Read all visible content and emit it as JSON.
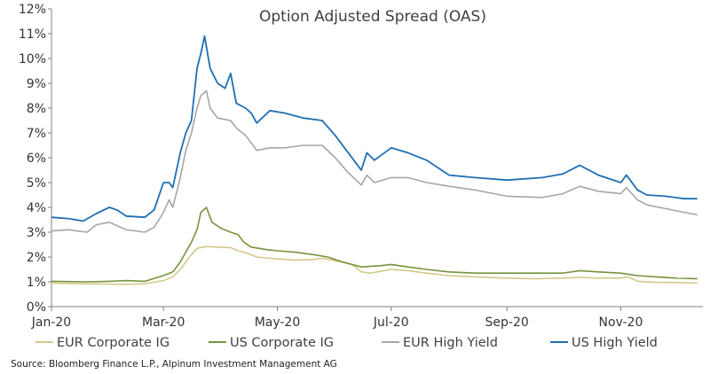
{
  "chart_data": {
    "type": "line",
    "title": "Option Adjusted Spread (OAS)",
    "xlabel": "",
    "ylabel": "",
    "x_ticks": [
      "Jan-20",
      "Mar-20",
      "May-20",
      "Jul-20",
      "Sep-20",
      "Nov-20"
    ],
    "y_ticks": [
      "0%",
      "1%",
      "2%",
      "3%",
      "4%",
      "5%",
      "6%",
      "7%",
      "8%",
      "9%",
      "10%",
      "11%",
      "12%"
    ],
    "ylim": [
      0,
      12
    ],
    "xlim": [
      "2020-01-01",
      "2020-12-15"
    ],
    "grid": false,
    "legend_position": "bottom",
    "series": [
      {
        "name": "EUR Corporate IG",
        "color": "#d6c98a",
        "points": [
          [
            "2020-01-01",
            0.95
          ],
          [
            "2020-01-20",
            0.92
          ],
          [
            "2020-02-10",
            0.9
          ],
          [
            "2020-02-20",
            0.92
          ],
          [
            "2020-03-01",
            1.05
          ],
          [
            "2020-03-06",
            1.2
          ],
          [
            "2020-03-10",
            1.5
          ],
          [
            "2020-03-13",
            1.8
          ],
          [
            "2020-03-16",
            2.1
          ],
          [
            "2020-03-19",
            2.35
          ],
          [
            "2020-03-24",
            2.42
          ],
          [
            "2020-03-30",
            2.4
          ],
          [
            "2020-04-06",
            2.38
          ],
          [
            "2020-04-10",
            2.25
          ],
          [
            "2020-04-15",
            2.15
          ],
          [
            "2020-04-20",
            2.0
          ],
          [
            "2020-05-01",
            1.92
          ],
          [
            "2020-05-10",
            1.88
          ],
          [
            "2020-05-20",
            1.9
          ],
          [
            "2020-05-25",
            1.95
          ],
          [
            "2020-06-01",
            1.85
          ],
          [
            "2020-06-10",
            1.7
          ],
          [
            "2020-06-15",
            1.4
          ],
          [
            "2020-06-20",
            1.35
          ],
          [
            "2020-07-01",
            1.5
          ],
          [
            "2020-07-10",
            1.45
          ],
          [
            "2020-07-20",
            1.35
          ],
          [
            "2020-08-01",
            1.25
          ],
          [
            "2020-08-15",
            1.2
          ],
          [
            "2020-09-01",
            1.15
          ],
          [
            "2020-09-15",
            1.12
          ],
          [
            "2020-10-01",
            1.15
          ],
          [
            "2020-10-10",
            1.18
          ],
          [
            "2020-10-20",
            1.15
          ],
          [
            "2020-11-01",
            1.15
          ],
          [
            "2020-11-05",
            1.2
          ],
          [
            "2020-11-10",
            1.02
          ],
          [
            "2020-11-20",
            0.98
          ],
          [
            "2020-12-01",
            0.97
          ],
          [
            "2020-12-12",
            0.95
          ]
        ]
      },
      {
        "name": "US Corporate IG",
        "color": "#77933c",
        "points": [
          [
            "2020-01-01",
            1.02
          ],
          [
            "2020-01-20",
            1.0
          ],
          [
            "2020-02-01",
            1.02
          ],
          [
            "2020-02-10",
            1.05
          ],
          [
            "2020-02-20",
            1.02
          ],
          [
            "2020-03-01",
            1.25
          ],
          [
            "2020-03-06",
            1.4
          ],
          [
            "2020-03-10",
            1.8
          ],
          [
            "2020-03-13",
            2.2
          ],
          [
            "2020-03-16",
            2.6
          ],
          [
            "2020-03-19",
            3.1
          ],
          [
            "2020-03-21",
            3.8
          ],
          [
            "2020-03-24",
            4.0
          ],
          [
            "2020-03-27",
            3.4
          ],
          [
            "2020-04-01",
            3.15
          ],
          [
            "2020-04-06",
            3.0
          ],
          [
            "2020-04-10",
            2.9
          ],
          [
            "2020-04-13",
            2.6
          ],
          [
            "2020-04-17",
            2.4
          ],
          [
            "2020-04-25",
            2.3
          ],
          [
            "2020-05-01",
            2.25
          ],
          [
            "2020-05-10",
            2.2
          ],
          [
            "2020-05-20",
            2.1
          ],
          [
            "2020-05-28",
            2.0
          ],
          [
            "2020-06-05",
            1.8
          ],
          [
            "2020-06-15",
            1.6
          ],
          [
            "2020-06-25",
            1.65
          ],
          [
            "2020-07-01",
            1.7
          ],
          [
            "2020-07-10",
            1.6
          ],
          [
            "2020-07-20",
            1.5
          ],
          [
            "2020-08-01",
            1.4
          ],
          [
            "2020-08-15",
            1.35
          ],
          [
            "2020-09-01",
            1.35
          ],
          [
            "2020-09-15",
            1.35
          ],
          [
            "2020-10-01",
            1.35
          ],
          [
            "2020-10-10",
            1.45
          ],
          [
            "2020-10-20",
            1.4
          ],
          [
            "2020-11-01",
            1.35
          ],
          [
            "2020-11-10",
            1.25
          ],
          [
            "2020-11-20",
            1.2
          ],
          [
            "2020-12-01",
            1.15
          ],
          [
            "2020-12-12",
            1.12
          ]
        ]
      },
      {
        "name": "EUR High Yield",
        "color": "#a6a6a6",
        "points": [
          [
            "2020-01-01",
            3.05
          ],
          [
            "2020-01-10",
            3.1
          ],
          [
            "2020-01-20",
            3.0
          ],
          [
            "2020-01-25",
            3.3
          ],
          [
            "2020-02-01",
            3.4
          ],
          [
            "2020-02-10",
            3.1
          ],
          [
            "2020-02-20",
            3.0
          ],
          [
            "2020-02-25",
            3.2
          ],
          [
            "2020-03-01",
            3.8
          ],
          [
            "2020-03-04",
            4.3
          ],
          [
            "2020-03-06",
            4.0
          ],
          [
            "2020-03-10",
            5.2
          ],
          [
            "2020-03-13",
            6.3
          ],
          [
            "2020-03-16",
            7.0
          ],
          [
            "2020-03-19",
            8.0
          ],
          [
            "2020-03-21",
            8.5
          ],
          [
            "2020-03-24",
            8.7
          ],
          [
            "2020-03-26",
            8.0
          ],
          [
            "2020-03-30",
            7.6
          ],
          [
            "2020-04-06",
            7.5
          ],
          [
            "2020-04-09",
            7.2
          ],
          [
            "2020-04-14",
            6.9
          ],
          [
            "2020-04-17",
            6.6
          ],
          [
            "2020-04-20",
            6.3
          ],
          [
            "2020-04-27",
            6.4
          ],
          [
            "2020-05-05",
            6.4
          ],
          [
            "2020-05-15",
            6.5
          ],
          [
            "2020-05-25",
            6.5
          ],
          [
            "2020-06-01",
            6.0
          ],
          [
            "2020-06-08",
            5.4
          ],
          [
            "2020-06-15",
            4.9
          ],
          [
            "2020-06-18",
            5.3
          ],
          [
            "2020-06-22",
            5.0
          ],
          [
            "2020-07-01",
            5.2
          ],
          [
            "2020-07-10",
            5.2
          ],
          [
            "2020-07-20",
            5.0
          ],
          [
            "2020-08-01",
            4.85
          ],
          [
            "2020-08-15",
            4.7
          ],
          [
            "2020-09-01",
            4.45
          ],
          [
            "2020-09-20",
            4.4
          ],
          [
            "2020-10-01",
            4.55
          ],
          [
            "2020-10-10",
            4.85
          ],
          [
            "2020-10-20",
            4.65
          ],
          [
            "2020-11-01",
            4.55
          ],
          [
            "2020-11-04",
            4.8
          ],
          [
            "2020-11-10",
            4.3
          ],
          [
            "2020-11-15",
            4.1
          ],
          [
            "2020-11-25",
            3.95
          ],
          [
            "2020-12-05",
            3.8
          ],
          [
            "2020-12-12",
            3.7
          ]
        ]
      },
      {
        "name": "US High Yield",
        "color": "#1f6fb2",
        "points": [
          [
            "2020-01-01",
            3.6
          ],
          [
            "2020-01-10",
            3.55
          ],
          [
            "2020-01-18",
            3.45
          ],
          [
            "2020-01-25",
            3.75
          ],
          [
            "2020-02-01",
            4.0
          ],
          [
            "2020-02-05",
            3.9
          ],
          [
            "2020-02-10",
            3.65
          ],
          [
            "2020-02-20",
            3.6
          ],
          [
            "2020-02-25",
            3.9
          ],
          [
            "2020-03-01",
            5.0
          ],
          [
            "2020-03-04",
            5.0
          ],
          [
            "2020-03-06",
            4.8
          ],
          [
            "2020-03-10",
            6.2
          ],
          [
            "2020-03-13",
            7.0
          ],
          [
            "2020-03-16",
            7.5
          ],
          [
            "2020-03-19",
            9.6
          ],
          [
            "2020-03-21",
            10.2
          ],
          [
            "2020-03-23",
            10.9
          ],
          [
            "2020-03-26",
            9.6
          ],
          [
            "2020-03-30",
            9.0
          ],
          [
            "2020-04-03",
            8.8
          ],
          [
            "2020-04-06",
            9.4
          ],
          [
            "2020-04-09",
            8.2
          ],
          [
            "2020-04-14",
            8.0
          ],
          [
            "2020-04-17",
            7.8
          ],
          [
            "2020-04-20",
            7.4
          ],
          [
            "2020-04-27",
            7.9
          ],
          [
            "2020-05-05",
            7.8
          ],
          [
            "2020-05-15",
            7.6
          ],
          [
            "2020-05-25",
            7.5
          ],
          [
            "2020-06-01",
            6.9
          ],
          [
            "2020-06-08",
            6.2
          ],
          [
            "2020-06-15",
            5.5
          ],
          [
            "2020-06-18",
            6.2
          ],
          [
            "2020-06-22",
            5.9
          ],
          [
            "2020-07-01",
            6.4
          ],
          [
            "2020-07-10",
            6.2
          ],
          [
            "2020-07-20",
            5.9
          ],
          [
            "2020-08-01",
            5.3
          ],
          [
            "2020-08-15",
            5.2
          ],
          [
            "2020-09-01",
            5.1
          ],
          [
            "2020-09-20",
            5.2
          ],
          [
            "2020-10-01",
            5.35
          ],
          [
            "2020-10-10",
            5.7
          ],
          [
            "2020-10-20",
            5.3
          ],
          [
            "2020-11-01",
            5.0
          ],
          [
            "2020-11-04",
            5.3
          ],
          [
            "2020-11-10",
            4.7
          ],
          [
            "2020-11-15",
            4.5
          ],
          [
            "2020-11-25",
            4.45
          ],
          [
            "2020-12-05",
            4.35
          ],
          [
            "2020-12-12",
            4.35
          ]
        ]
      }
    ]
  },
  "source": "Source: Bloomberg Finance L.P., Alpinum Investment Management AG"
}
